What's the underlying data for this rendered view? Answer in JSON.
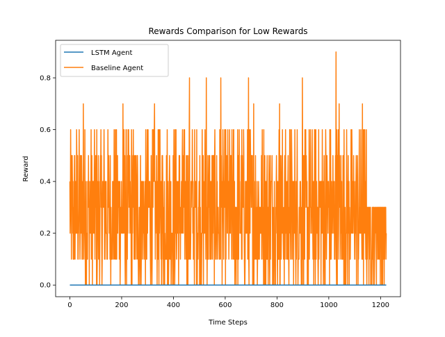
{
  "chart_data": {
    "type": "line",
    "title": "Rewards Comparison for Low Rewards",
    "xlabel": "Time Steps",
    "ylabel": "Reward",
    "xlim": [
      -55,
      1277
    ],
    "ylim": [
      -0.045,
      0.945
    ],
    "xticks": [
      0,
      200,
      400,
      600,
      800,
      1000,
      1200
    ],
    "yticks": [
      0.0,
      0.2,
      0.4,
      0.6,
      0.8
    ],
    "ytick_labels": [
      "0.0",
      "0.2",
      "0.4",
      "0.6",
      "0.8"
    ],
    "grid": false,
    "legend_position": "top-left",
    "series": [
      {
        "name": "LSTM Agent",
        "color": "#1f77b4",
        "x_range": [
          0,
          1222
        ],
        "constant_value": 0.0
      },
      {
        "name": "Baseline Agent",
        "color": "#ff7f0e",
        "x_range": [
          0,
          1222
        ],
        "value_set": [
          0.0,
          0.1,
          0.2,
          0.3,
          0.4,
          0.5,
          0.6,
          0.7,
          0.8,
          0.9
        ],
        "peaks": [
          {
            "x": 52,
            "y": 0.7
          },
          {
            "x": 205,
            "y": 0.7
          },
          {
            "x": 327,
            "y": 0.7
          },
          {
            "x": 462,
            "y": 0.8
          },
          {
            "x": 527,
            "y": 0.8
          },
          {
            "x": 583,
            "y": 0.8
          },
          {
            "x": 690,
            "y": 0.8
          },
          {
            "x": 710,
            "y": 0.7
          },
          {
            "x": 810,
            "y": 0.7
          },
          {
            "x": 898,
            "y": 0.8
          },
          {
            "x": 1028,
            "y": 0.9
          },
          {
            "x": 1040,
            "y": 0.7
          },
          {
            "x": 1130,
            "y": 0.7
          }
        ]
      }
    ]
  }
}
